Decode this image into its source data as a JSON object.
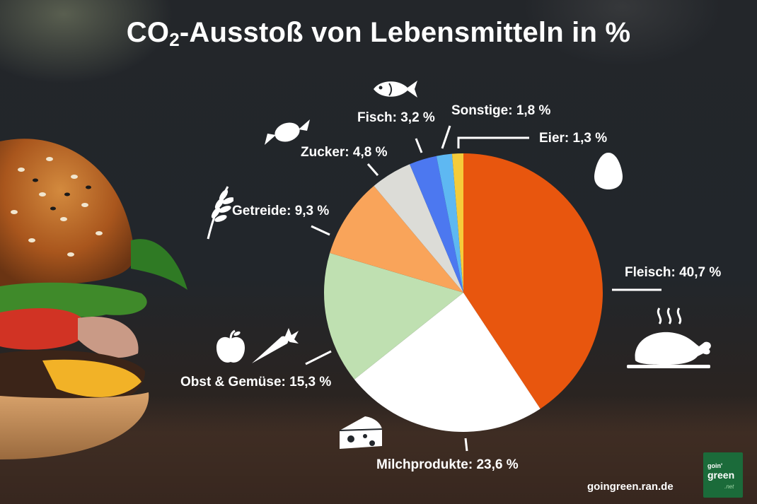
{
  "title": {
    "main": "CO",
    "sub": "2",
    "rest": "-Ausstoß von Lebensmitteln in %"
  },
  "chart_data": {
    "type": "pie",
    "title": "CO2-Ausstoß von Lebensmitteln in %",
    "slices": [
      {
        "label": "Fleisch: 40,7 %",
        "name": "Fleisch",
        "value": 40.7,
        "color": "#e8560e"
      },
      {
        "label": "Milchprodukte: 23,6 %",
        "name": "Milchprodukte",
        "value": 23.6,
        "color": "#ffffff"
      },
      {
        "label": "Obst & Gemüse: 15,3 %",
        "name": "Obst & Gemüse",
        "value": 15.3,
        "color": "#bfe0b1"
      },
      {
        "label": "Getreide: 9,3 %",
        "name": "Getreide",
        "value": 9.3,
        "color": "#f9a45a"
      },
      {
        "label": "Zucker: 4,8 %",
        "name": "Zucker",
        "value": 4.8,
        "color": "#dcdcd7"
      },
      {
        "label": "Fisch: 3,2 %",
        "name": "Fisch",
        "value": 3.2,
        "color": "#4c78f0"
      },
      {
        "label": "Sonstige: 1,8 %",
        "name": "Sonstige",
        "value": 1.8,
        "color": "#5eb8f2"
      },
      {
        "label": "Eier: 1,3 %",
        "name": "Eier",
        "value": 1.3,
        "color": "#f5cc3a"
      }
    ],
    "start_angle_deg": 0,
    "direction": "clockwise"
  },
  "icons": [
    "fish-icon",
    "candy-icon",
    "wheat-icon",
    "egg-icon",
    "roast-chicken-icon",
    "apple-icon",
    "carrot-icon",
    "cheese-icon"
  ],
  "footer": {
    "website": "goingreen.ran.de"
  },
  "logo": {
    "line1": "goin'",
    "line2": "green",
    "line3": ".net"
  }
}
